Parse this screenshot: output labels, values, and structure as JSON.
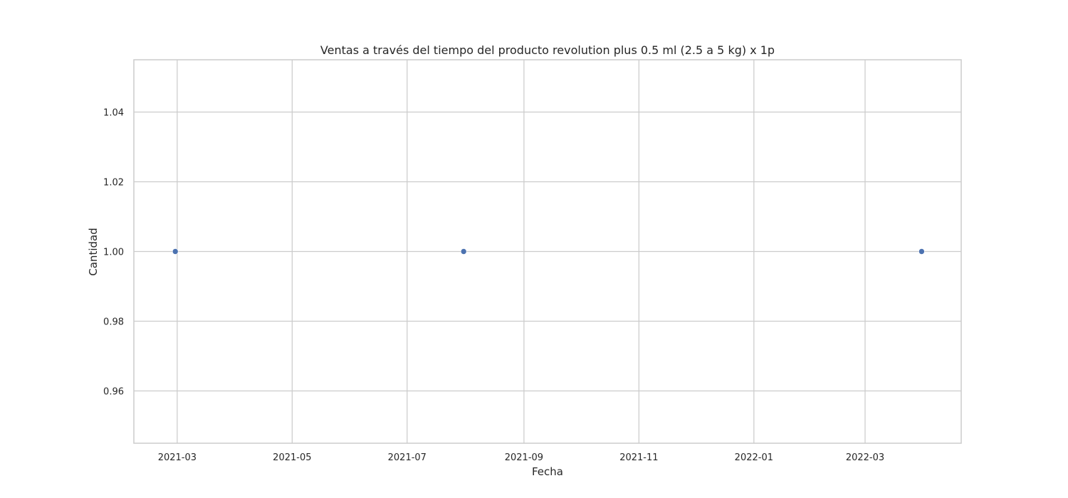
{
  "chart_data": {
    "type": "scatter",
    "title": "Ventas a través del tiempo del producto revolution plus 0.5 ml (2.5 a 5 kg) x 1p",
    "xlabel": "Fecha",
    "ylabel": "Cantidad",
    "x_scale": "date",
    "xlim": [
      "2021-02-06",
      "2022-04-21"
    ],
    "ylim": [
      0.945,
      1.055
    ],
    "x_ticks": [
      "2021-03",
      "2021-05",
      "2021-07",
      "2021-09",
      "2021-11",
      "2022-01",
      "2022-03"
    ],
    "x_tick_dates": [
      "2021-03-01",
      "2021-05-01",
      "2021-07-01",
      "2021-09-01",
      "2021-11-01",
      "2022-01-01",
      "2022-03-01"
    ],
    "y_ticks": [
      "0.96",
      "0.98",
      "1.00",
      "1.02",
      "1.04"
    ],
    "y_tick_values": [
      0.96,
      0.98,
      1.0,
      1.02,
      1.04
    ],
    "grid": true,
    "point_color": "#4c72b0",
    "grid_color": "#cccccc",
    "points": [
      {
        "x": "2021-02-28",
        "y": 1.0
      },
      {
        "x": "2021-07-31",
        "y": 1.0
      },
      {
        "x": "2022-03-31",
        "y": 1.0
      }
    ]
  }
}
